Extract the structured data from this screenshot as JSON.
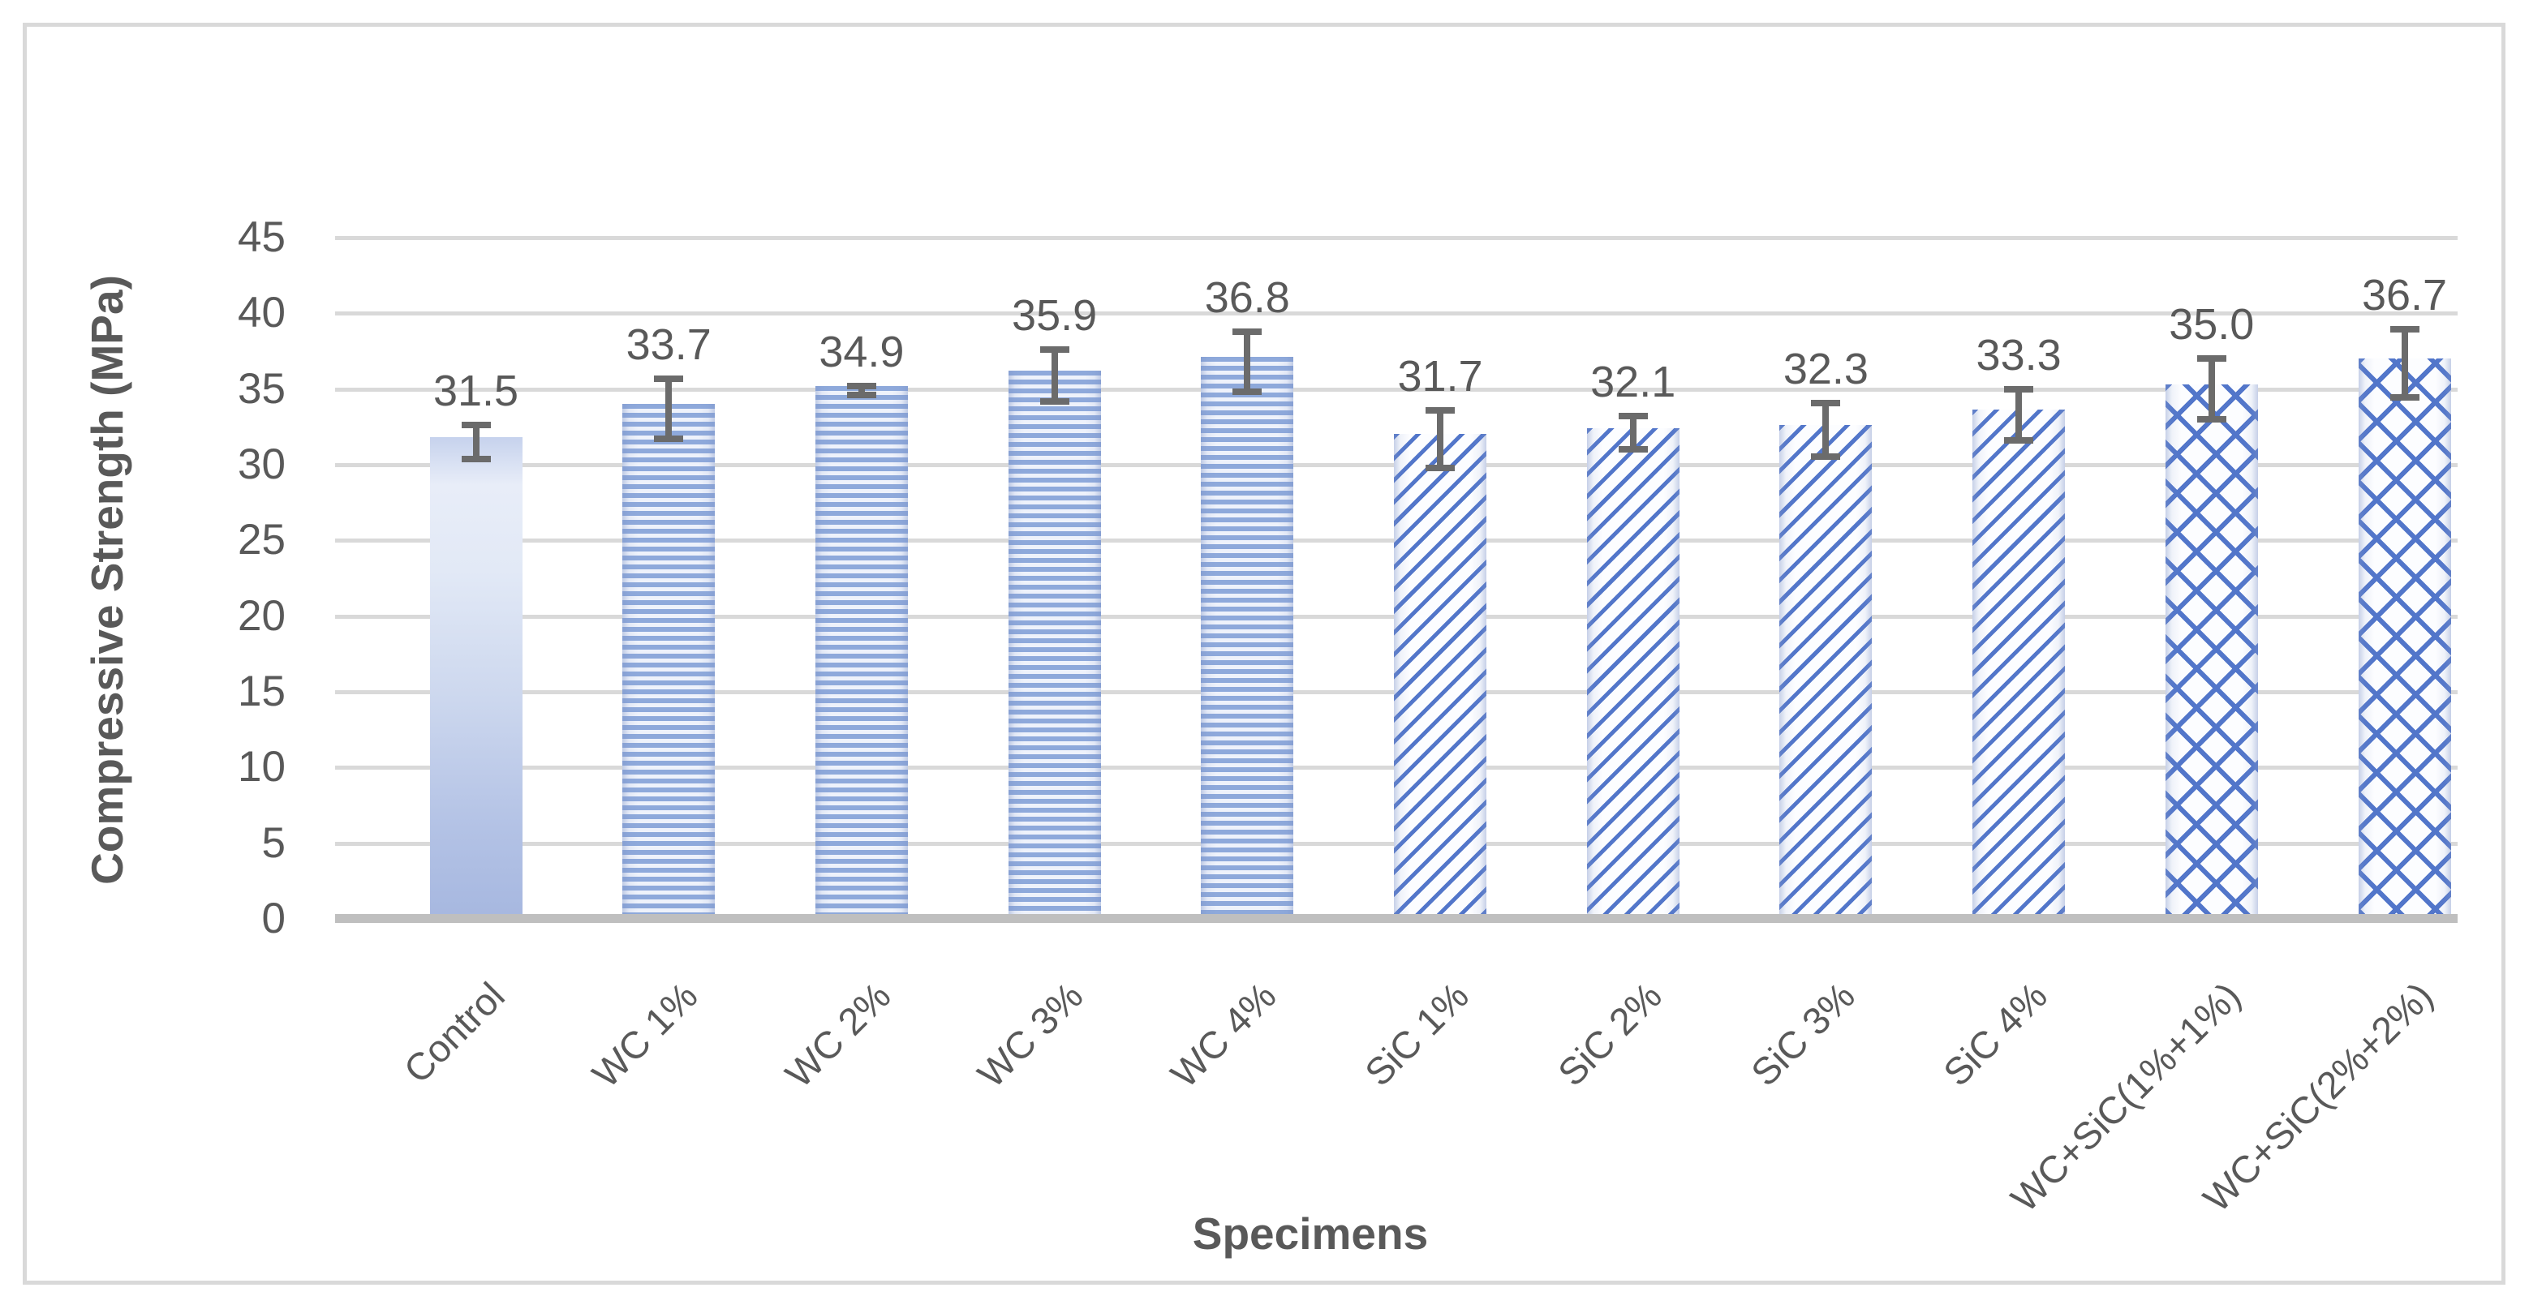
{
  "figure": {
    "border_color": "#d9d9d9",
    "background": "#ffffff"
  },
  "chart_data": {
    "type": "bar",
    "title": "",
    "xlabel": "Specimens",
    "ylabel": "Compressive Strength (MPa)",
    "ylim": [
      0,
      45
    ],
    "ytick_step": 5,
    "y_tick_labels": [
      "0",
      "5",
      "10",
      "15",
      "20",
      "25",
      "30",
      "35",
      "40",
      "45"
    ],
    "grid": true,
    "legend": false,
    "categories": [
      "Control",
      "WC 1%",
      "WC 2%",
      "WC 3%",
      "WC 4%",
      "SiC 1%",
      "SiC 2%",
      "SiC 3%",
      "SiC 4%",
      "WC+SiC(1%+1%)",
      "WC+SiC(2%+2%)"
    ],
    "values": [
      31.5,
      33.7,
      34.9,
      35.9,
      36.8,
      31.7,
      32.1,
      32.3,
      33.3,
      35.0,
      36.7
    ],
    "data_labels": [
      "31.5",
      "33.7",
      "34.9",
      "35.9",
      "36.8",
      "31.7",
      "32.1",
      "32.3",
      "33.3",
      "35.0",
      "36.7"
    ],
    "error_bars": [
      1.1,
      2.0,
      0.3,
      1.7,
      2.0,
      1.9,
      1.1,
      1.75,
      1.7,
      2.0,
      2.25
    ],
    "bar_patterns": [
      "gradient",
      "hstripe",
      "hstripe",
      "hstripe",
      "hstripe",
      "diagonal",
      "diagonal",
      "diagonal",
      "diagonal",
      "crosshatch",
      "crosshatch"
    ],
    "colors": {
      "bar_fill_blue": "#8ea9db",
      "pattern_line_blue": "#5276ca",
      "stripe_light": "#eef2fb",
      "gridline": "#d9d9d9",
      "axis_line": "#bfbfbf",
      "error_bar": "#6b6b6b",
      "text": "#595959"
    }
  }
}
